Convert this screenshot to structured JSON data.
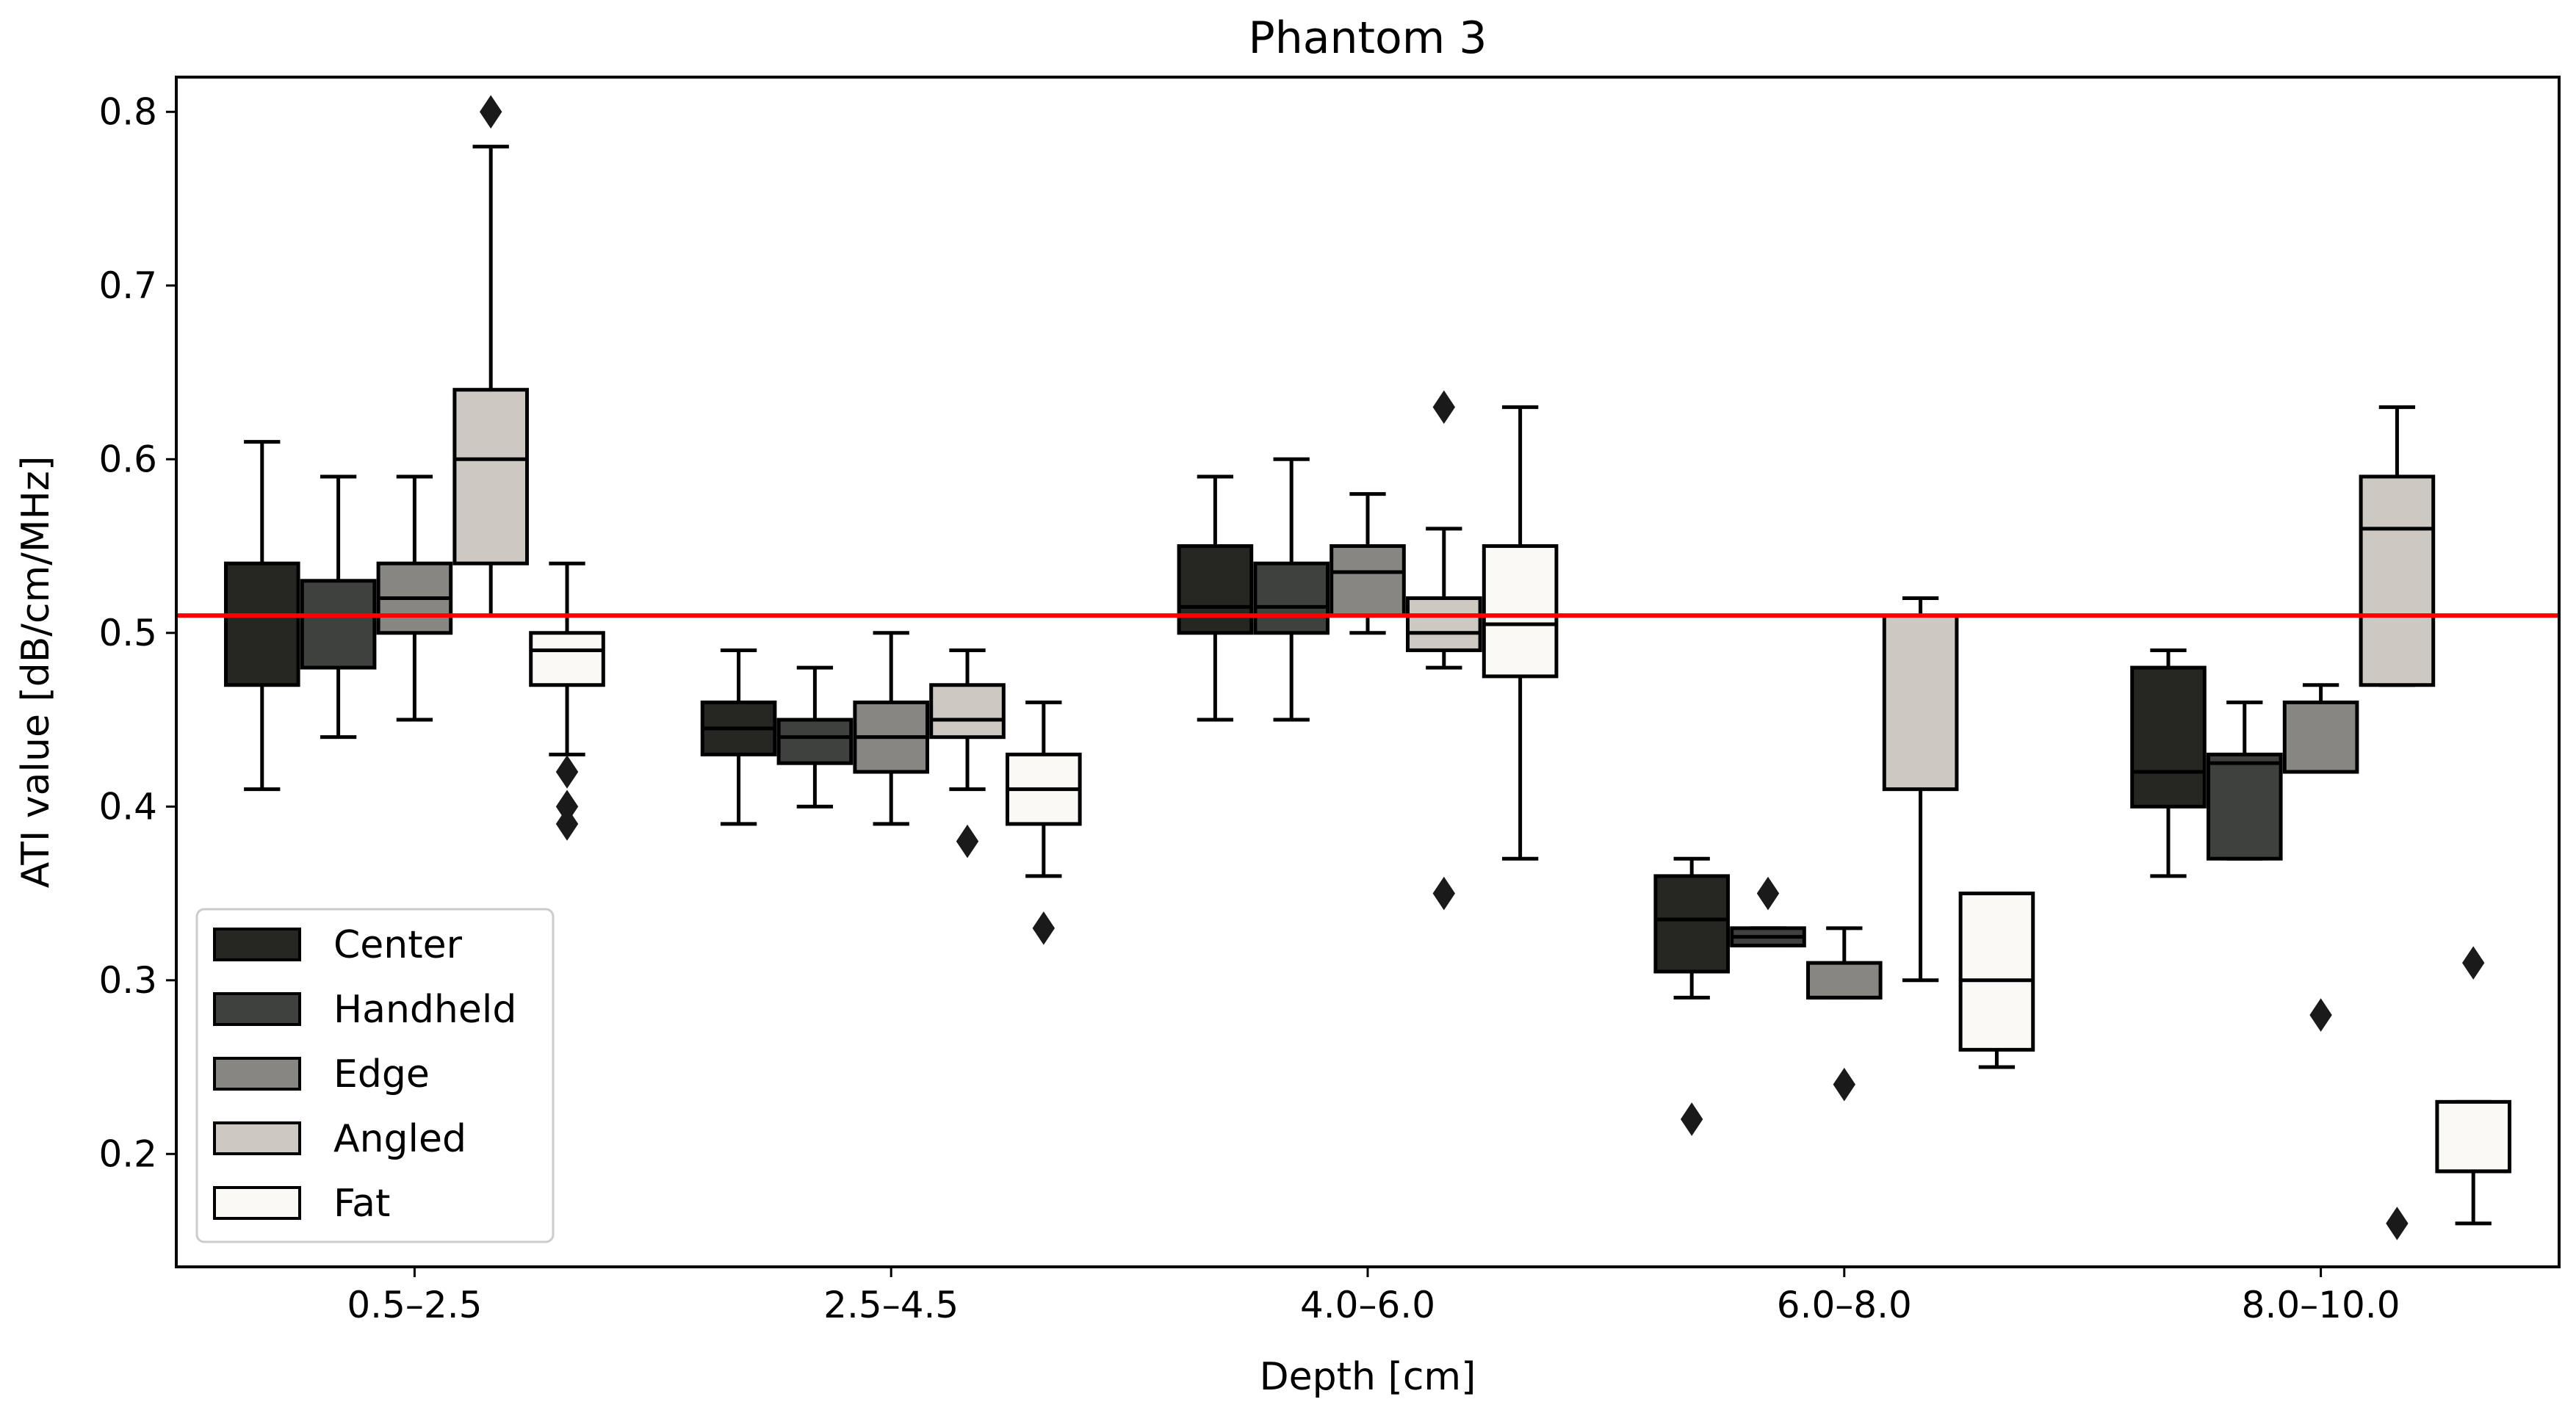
{
  "chart_data": {
    "type": "boxplot",
    "title": "Phantom 3",
    "xlabel": "Depth [cm]",
    "ylabel": "ATI value [dB/cm/MHz]",
    "categories": [
      "0.5–2.5",
      "2.5–4.5",
      "4.0–6.0",
      "6.0–8.0",
      "8.0–10.0"
    ],
    "ylim": [
      0.135,
      0.82
    ],
    "yticks": [
      0.2,
      0.3,
      0.4,
      0.5,
      0.6,
      0.7,
      0.8
    ],
    "ytick_labels": [
      "0.2",
      "0.3",
      "0.4",
      "0.5",
      "0.6",
      "0.7",
      "0.8"
    ],
    "reference_line": {
      "value": 0.51,
      "color": "#ff0000"
    },
    "legend_position": "lower-left",
    "series": [
      {
        "name": "Center",
        "color": "#262723",
        "boxes": [
          {
            "whislo": 0.41,
            "q1": 0.47,
            "med": 0.51,
            "q3": 0.54,
            "whishi": 0.61,
            "fliers": []
          },
          {
            "whislo": 0.39,
            "q1": 0.43,
            "med": 0.445,
            "q3": 0.46,
            "whishi": 0.49,
            "fliers": []
          },
          {
            "whislo": 0.45,
            "q1": 0.5,
            "med": 0.515,
            "q3": 0.55,
            "whishi": 0.59,
            "fliers": []
          },
          {
            "whislo": 0.29,
            "q1": 0.305,
            "med": 0.335,
            "q3": 0.36,
            "whishi": 0.37,
            "fliers": [
              0.22
            ]
          },
          {
            "whislo": 0.36,
            "q1": 0.4,
            "med": 0.42,
            "q3": 0.48,
            "whishi": 0.49,
            "fliers": []
          }
        ]
      },
      {
        "name": "Handheld",
        "color": "#3f413e",
        "boxes": [
          {
            "whislo": 0.44,
            "q1": 0.48,
            "med": 0.51,
            "q3": 0.53,
            "whishi": 0.59,
            "fliers": []
          },
          {
            "whislo": 0.4,
            "q1": 0.425,
            "med": 0.44,
            "q3": 0.45,
            "whishi": 0.48,
            "fliers": []
          },
          {
            "whislo": 0.45,
            "q1": 0.5,
            "med": 0.515,
            "q3": 0.54,
            "whishi": 0.6,
            "fliers": []
          },
          {
            "whislo": 0.32,
            "q1": 0.32,
            "med": 0.325,
            "q3": 0.33,
            "whishi": 0.33,
            "fliers": [
              0.35
            ]
          },
          {
            "whislo": 0.37,
            "q1": 0.37,
            "med": 0.425,
            "q3": 0.43,
            "whishi": 0.46,
            "fliers": []
          }
        ]
      },
      {
        "name": "Edge",
        "color": "#878682",
        "boxes": [
          {
            "whislo": 0.45,
            "q1": 0.5,
            "med": 0.52,
            "q3": 0.54,
            "whishi": 0.59,
            "fliers": []
          },
          {
            "whislo": 0.39,
            "q1": 0.42,
            "med": 0.44,
            "q3": 0.46,
            "whishi": 0.5,
            "fliers": []
          },
          {
            "whislo": 0.5,
            "q1": 0.51,
            "med": 0.535,
            "q3": 0.55,
            "whishi": 0.58,
            "fliers": []
          },
          {
            "whislo": 0.29,
            "q1": 0.29,
            "med": 0.29,
            "q3": 0.31,
            "whishi": 0.33,
            "fliers": [
              0.24
            ]
          },
          {
            "whislo": 0.42,
            "q1": 0.42,
            "med": 0.42,
            "q3": 0.46,
            "whishi": 0.47,
            "fliers": [
              0.28
            ]
          }
        ]
      },
      {
        "name": "Angled",
        "color": "#cdc9c2",
        "boxes": [
          {
            "whislo": 0.51,
            "q1": 0.54,
            "med": 0.6,
            "q3": 0.64,
            "whishi": 0.78,
            "fliers": [
              0.8
            ]
          },
          {
            "whislo": 0.41,
            "q1": 0.44,
            "med": 0.45,
            "q3": 0.47,
            "whishi": 0.49,
            "fliers": [
              0.38
            ]
          },
          {
            "whislo": 0.48,
            "q1": 0.49,
            "med": 0.5,
            "q3": 0.52,
            "whishi": 0.56,
            "fliers": [
              0.63,
              0.35
            ]
          },
          {
            "whislo": 0.3,
            "q1": 0.41,
            "med": 0.51,
            "q3": 0.51,
            "whishi": 0.52,
            "fliers": []
          },
          {
            "whislo": 0.47,
            "q1": 0.47,
            "med": 0.56,
            "q3": 0.59,
            "whishi": 0.63,
            "fliers": [
              0.16
            ]
          }
        ]
      },
      {
        "name": "Fat",
        "color": "#fbf9f6",
        "boxes": [
          {
            "whislo": 0.43,
            "q1": 0.47,
            "med": 0.49,
            "q3": 0.5,
            "whishi": 0.54,
            "fliers": [
              0.42,
              0.4,
              0.39
            ]
          },
          {
            "whislo": 0.36,
            "q1": 0.39,
            "med": 0.41,
            "q3": 0.43,
            "whishi": 0.46,
            "fliers": [
              0.33
            ]
          },
          {
            "whislo": 0.37,
            "q1": 0.475,
            "med": 0.505,
            "q3": 0.55,
            "whishi": 0.63,
            "fliers": []
          },
          {
            "whislo": 0.25,
            "q1": 0.26,
            "med": 0.3,
            "q3": 0.35,
            "whishi": 0.35,
            "fliers": []
          },
          {
            "whislo": 0.16,
            "q1": 0.19,
            "med": 0.19,
            "q3": 0.23,
            "whishi": 0.23,
            "fliers": [
              0.31
            ]
          }
        ]
      }
    ]
  }
}
